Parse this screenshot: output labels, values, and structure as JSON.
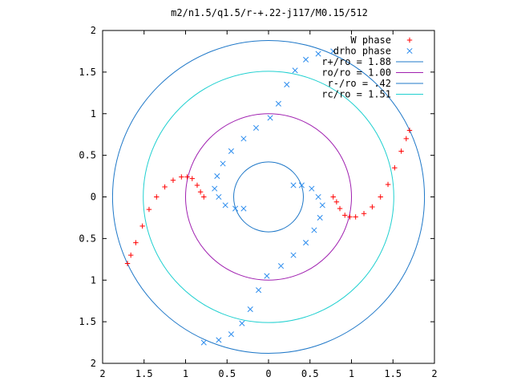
{
  "chart_data": {
    "type": "scatter",
    "title": "m2/n1.5/q1.5/r-+.22-j117/M0.15/512",
    "xlabel": "",
    "ylabel": "",
    "xlim": [
      -2,
      2
    ],
    "ylim": [
      -2,
      2
    ],
    "x_ticks": [
      "2",
      "1.5",
      "1",
      "0.5",
      "0",
      "0.5",
      "1",
      "1.5",
      "2"
    ],
    "y_ticks": [
      "2",
      "1.5",
      "1",
      "0.5",
      "0",
      "0.5",
      "1",
      "1.5",
      "2"
    ],
    "grid": false,
    "legend_position": "top-right",
    "series": [
      {
        "name": "W phase",
        "marker": "plus",
        "color": "#ff0000",
        "points": [
          [
            1.7,
            0.8
          ],
          [
            1.66,
            0.7
          ],
          [
            1.6,
            0.55
          ],
          [
            1.52,
            0.35
          ],
          [
            1.44,
            0.15
          ],
          [
            1.35,
            0.0
          ],
          [
            1.25,
            -0.12
          ],
          [
            1.15,
            -0.2
          ],
          [
            1.05,
            -0.24
          ],
          [
            0.98,
            -0.24
          ],
          [
            0.92,
            -0.22
          ],
          [
            0.86,
            -0.14
          ],
          [
            0.82,
            -0.06
          ],
          [
            0.78,
            0.0
          ],
          [
            -1.7,
            -0.8
          ],
          [
            -1.66,
            -0.7
          ],
          [
            -1.6,
            -0.55
          ],
          [
            -1.52,
            -0.35
          ],
          [
            -1.44,
            -0.15
          ],
          [
            -1.35,
            0.0
          ],
          [
            -1.25,
            0.12
          ],
          [
            -1.15,
            0.2
          ],
          [
            -1.05,
            0.24
          ],
          [
            -0.98,
            0.24
          ],
          [
            -0.92,
            0.22
          ],
          [
            -0.86,
            0.14
          ],
          [
            -0.82,
            0.06
          ],
          [
            -0.78,
            0.0
          ]
        ]
      },
      {
        "name": "drho phase",
        "marker": "cross",
        "color": "#2b8cee",
        "points": [
          [
            0.78,
            1.75
          ],
          [
            0.6,
            1.72
          ],
          [
            0.45,
            1.65
          ],
          [
            0.32,
            1.52
          ],
          [
            0.22,
            1.35
          ],
          [
            0.12,
            1.12
          ],
          [
            0.02,
            0.95
          ],
          [
            -0.15,
            0.83
          ],
          [
            -0.3,
            0.7
          ],
          [
            -0.45,
            0.55
          ],
          [
            -0.55,
            0.4
          ],
          [
            -0.62,
            0.25
          ],
          [
            -0.65,
            0.1
          ],
          [
            -0.6,
            0.0
          ],
          [
            -0.52,
            -0.1
          ],
          [
            -0.4,
            -0.14
          ],
          [
            -0.3,
            -0.14
          ],
          [
            -0.78,
            -1.75
          ],
          [
            -0.6,
            -1.72
          ],
          [
            -0.45,
            -1.65
          ],
          [
            -0.32,
            -1.52
          ],
          [
            -0.22,
            -1.35
          ],
          [
            -0.12,
            -1.12
          ],
          [
            -0.02,
            -0.95
          ],
          [
            0.15,
            -0.83
          ],
          [
            0.3,
            -0.7
          ],
          [
            0.45,
            -0.55
          ],
          [
            0.55,
            -0.4
          ],
          [
            0.62,
            -0.25
          ],
          [
            0.65,
            -0.1
          ],
          [
            0.6,
            0.0
          ],
          [
            0.52,
            0.1
          ],
          [
            0.4,
            0.14
          ],
          [
            0.3,
            0.14
          ]
        ]
      }
    ],
    "circles": [
      {
        "name": "r+/ro = 1.88",
        "radius": 1.88,
        "color": "#1f78c8"
      },
      {
        "name": "ro/ro = 1.00",
        "radius": 1.0,
        "color": "#a020b0"
      },
      {
        "name": "r-/ro = .42",
        "radius": 0.42,
        "color": "#1f78c8"
      },
      {
        "name": "rc/ro = 1.51",
        "radius": 1.51,
        "color": "#20d0d0"
      }
    ]
  }
}
